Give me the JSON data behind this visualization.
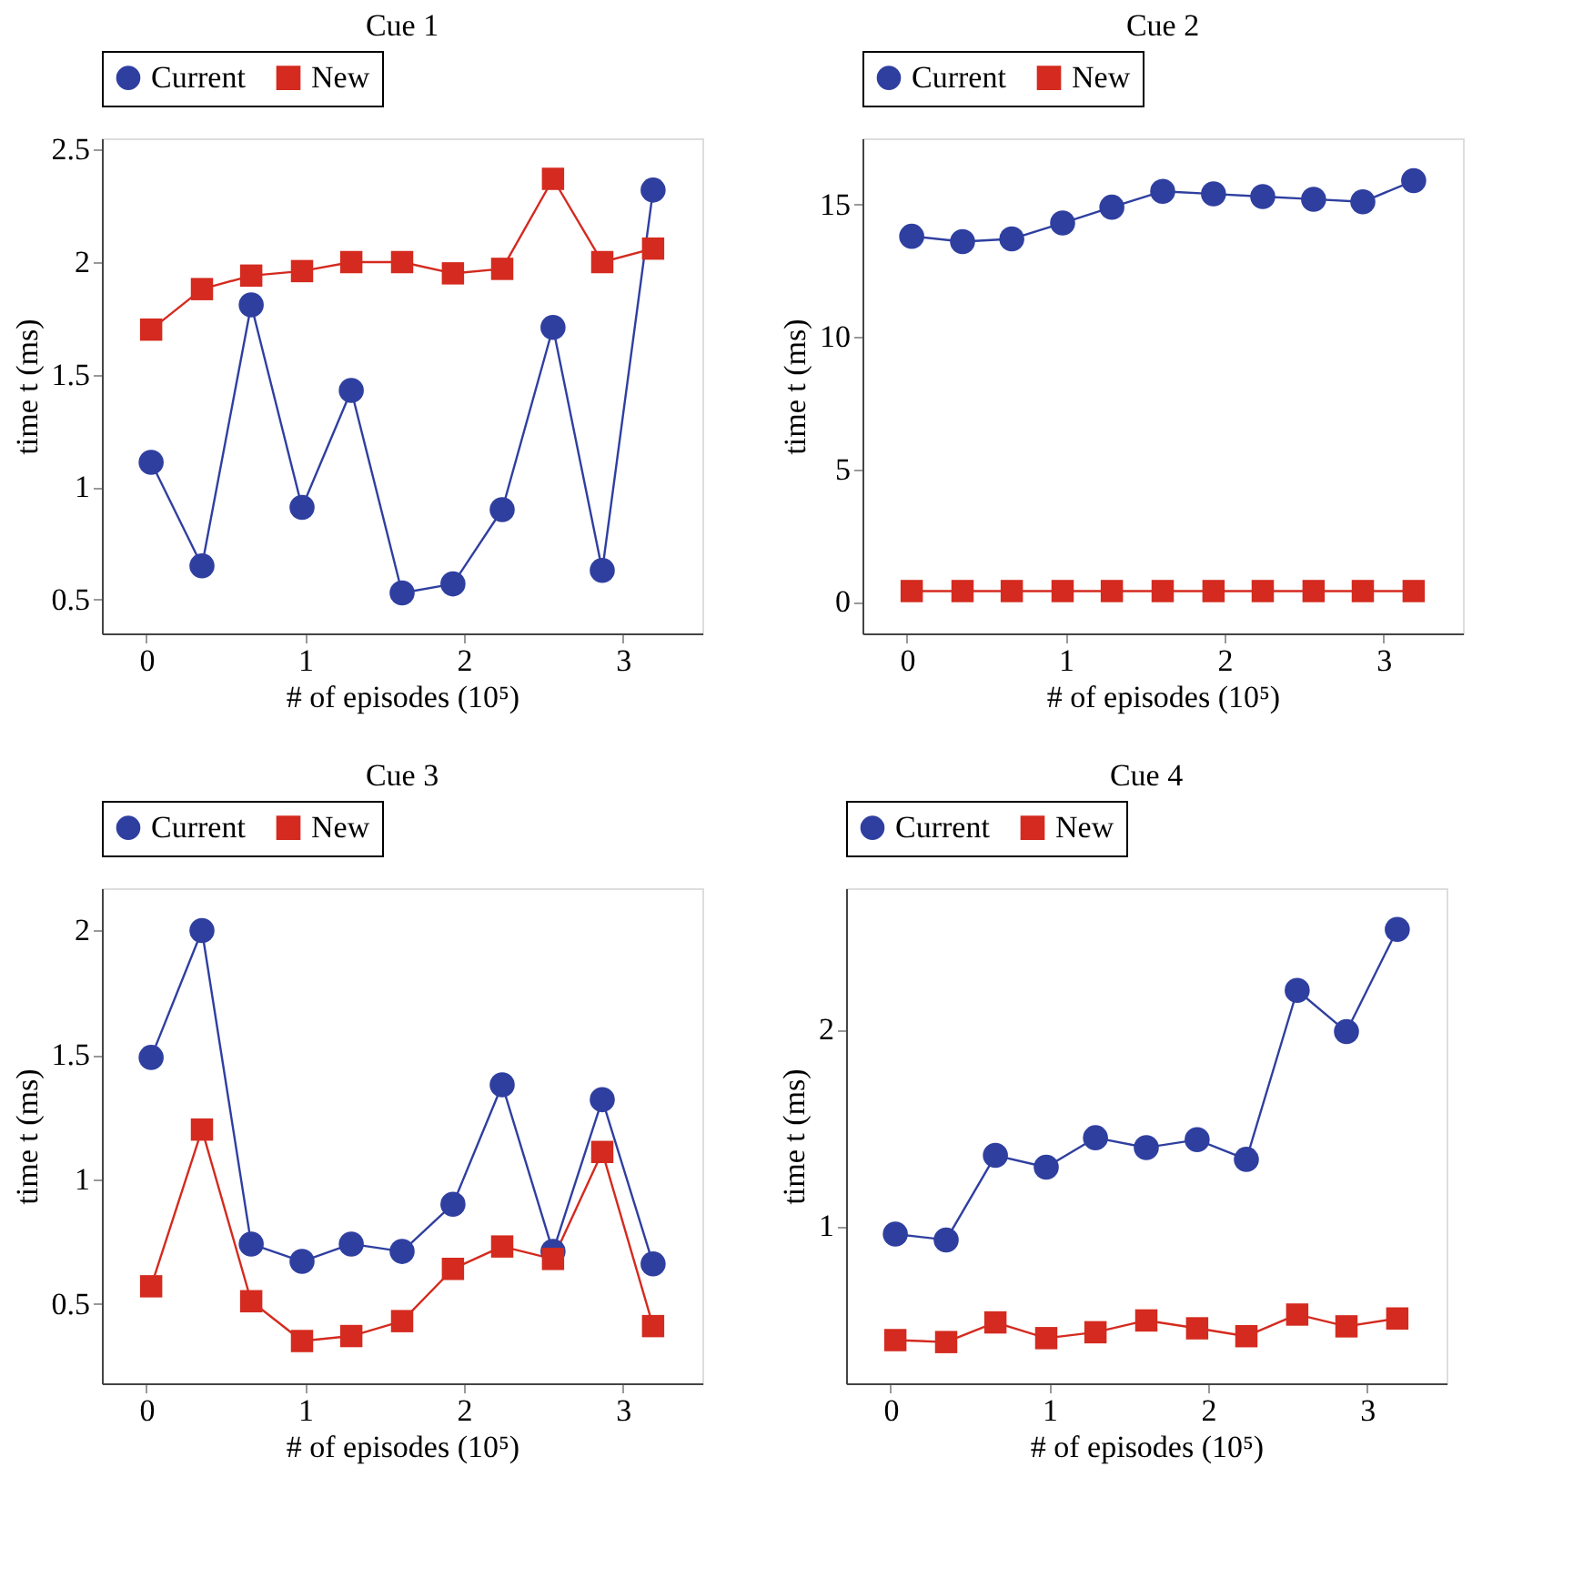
{
  "chart_data": [
    {
      "type": "line",
      "title": "Cue 1",
      "xlabel": "# of episodes (10⁵)",
      "ylabel": "time t (ms)",
      "x": [
        0.03,
        0.35,
        0.66,
        0.98,
        1.29,
        1.61,
        1.93,
        2.24,
        2.56,
        2.87,
        3.19
      ],
      "xlim": [
        -0.28,
        3.5
      ],
      "xticks": [
        0,
        1,
        2,
        3
      ],
      "ylim": [
        0.35,
        2.55
      ],
      "yticks": [
        0.5,
        1,
        1.5,
        2,
        2.5
      ],
      "grid": false,
      "legend": "top",
      "series": [
        {
          "name": "Current",
          "color": "#2f3fa0",
          "marker": "circle",
          "values": [
            1.11,
            0.65,
            1.81,
            0.91,
            1.43,
            0.53,
            0.57,
            0.9,
            1.71,
            0.63,
            2.32
          ]
        },
        {
          "name": "New",
          "color": "#d42a1f",
          "marker": "square",
          "values": [
            1.7,
            1.88,
            1.94,
            1.96,
            2.0,
            2.0,
            1.95,
            1.97,
            2.37,
            2.0,
            2.06
          ]
        }
      ]
    },
    {
      "type": "line",
      "title": "Cue 2",
      "xlabel": "# of episodes (10⁵)",
      "ylabel": "time t (ms)",
      "x": [
        0.03,
        0.35,
        0.66,
        0.98,
        1.29,
        1.61,
        1.93,
        2.24,
        2.56,
        2.87,
        3.19
      ],
      "xlim": [
        -0.28,
        3.5
      ],
      "xticks": [
        0,
        1,
        2,
        3
      ],
      "ylim": [
        -1.2,
        17.5
      ],
      "yticks": [
        0,
        5,
        10,
        15
      ],
      "grid": false,
      "legend": "top",
      "series": [
        {
          "name": "Current",
          "color": "#2f3fa0",
          "marker": "circle",
          "values": [
            13.8,
            13.6,
            13.7,
            14.3,
            14.9,
            15.5,
            15.4,
            15.3,
            15.2,
            15.1,
            15.9
          ]
        },
        {
          "name": "New",
          "color": "#d42a1f",
          "marker": "square",
          "values": [
            0.4,
            0.4,
            0.4,
            0.4,
            0.4,
            0.4,
            0.4,
            0.4,
            0.4,
            0.4,
            0.4
          ]
        }
      ]
    },
    {
      "type": "line",
      "title": "Cue 3",
      "xlabel": "# of episodes (10⁵)",
      "ylabel": "time t (ms)",
      "x": [
        0.03,
        0.35,
        0.66,
        0.98,
        1.29,
        1.61,
        1.93,
        2.24,
        2.56,
        2.87,
        3.19
      ],
      "xlim": [
        -0.28,
        3.5
      ],
      "xticks": [
        0,
        1,
        2,
        3
      ],
      "ylim": [
        0.18,
        2.17
      ],
      "yticks": [
        0.5,
        1,
        1.5,
        2
      ],
      "grid": false,
      "legend": "top",
      "series": [
        {
          "name": "Current",
          "color": "#2f3fa0",
          "marker": "circle",
          "values": [
            1.49,
            2.0,
            0.74,
            0.67,
            0.74,
            0.71,
            0.9,
            1.38,
            0.71,
            1.32,
            0.66
          ]
        },
        {
          "name": "New",
          "color": "#d42a1f",
          "marker": "square",
          "values": [
            0.57,
            1.2,
            0.51,
            0.35,
            0.37,
            0.43,
            0.64,
            0.73,
            0.68,
            1.11,
            0.41
          ]
        }
      ]
    },
    {
      "type": "line",
      "title": "Cue 4",
      "xlabel": "# of episodes (10⁵)",
      "ylabel": "time t (ms)",
      "x": [
        0.03,
        0.35,
        0.66,
        0.98,
        1.29,
        1.61,
        1.93,
        2.24,
        2.56,
        2.87,
        3.19
      ],
      "xlim": [
        -0.28,
        3.5
      ],
      "xticks": [
        0,
        1,
        2,
        3
      ],
      "ylim": [
        0.2,
        2.72
      ],
      "yticks": [
        1,
        2
      ],
      "grid": false,
      "legend": "top",
      "series": [
        {
          "name": "Current",
          "color": "#2f3fa0",
          "marker": "circle",
          "values": [
            0.96,
            0.93,
            1.36,
            1.3,
            1.45,
            1.4,
            1.44,
            1.34,
            2.2,
            1.99,
            2.51
          ]
        },
        {
          "name": "New",
          "color": "#d42a1f",
          "marker": "square",
          "values": [
            0.42,
            0.41,
            0.51,
            0.43,
            0.46,
            0.52,
            0.48,
            0.44,
            0.55,
            0.49,
            0.53
          ]
        }
      ]
    }
  ]
}
